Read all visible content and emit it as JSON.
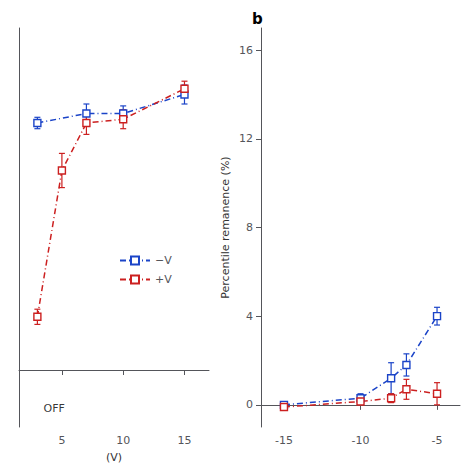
{
  "chart_data": [
    {
      "type": "line",
      "xlabel": "(V)",
      "xlim": [
        1.5,
        17
      ],
      "xticks": [
        5,
        10,
        15
      ],
      "ylim": [
        -3,
        18
      ],
      "yticks": [],
      "tick_labels": "x",
      "grid": false,
      "legend": "lower right",
      "marker": "square",
      "line_style": "dashdot",
      "series": [
        {
          "name": "−V",
          "color": "#1B44C8",
          "x": [
            3,
            7,
            10,
            15
          ],
          "values": [
            13.0,
            13.5,
            13.5,
            14.5
          ],
          "yerr": [
            0.3,
            0.5,
            0.4,
            0.5
          ]
        },
        {
          "name": "+V",
          "color": "#CC2020",
          "x": [
            3,
            5,
            7,
            10,
            15
          ],
          "values": [
            2.8,
            10.5,
            13.0,
            13.2,
            14.8
          ],
          "yerr": [
            0.4,
            0.9,
            0.6,
            0.5,
            0.4
          ]
        }
      ],
      "annotations": [
        {
          "text": "OFF",
          "x": 3.5,
          "y": -2.0
        }
      ]
    },
    {
      "type": "line",
      "title": "b",
      "ylabel": "Percentile remanence (%)",
      "xlim": [
        -16.5,
        -3.5
      ],
      "xticks": [
        -15,
        -10,
        -5
      ],
      "ylim": [
        -1,
        17
      ],
      "yticks": [
        0,
        4,
        8,
        12,
        16
      ],
      "grid": false,
      "marker": "square",
      "line_style": "dashdot",
      "series": [
        {
          "name": "−V",
          "color": "#1B44C8",
          "x": [
            -15,
            -10,
            -8,
            -7,
            -5
          ],
          "values": [
            0.0,
            0.3,
            1.2,
            1.8,
            4.0
          ],
          "yerr": [
            0.05,
            0.2,
            0.7,
            0.5,
            0.4
          ]
        },
        {
          "name": "+V",
          "color": "#CC2020",
          "x": [
            -15,
            -10,
            -8,
            -7,
            -5
          ],
          "values": [
            -0.1,
            0.15,
            0.3,
            0.7,
            0.5
          ],
          "yerr": [
            0.1,
            0.1,
            0.2,
            0.45,
            0.5
          ]
        }
      ]
    }
  ]
}
